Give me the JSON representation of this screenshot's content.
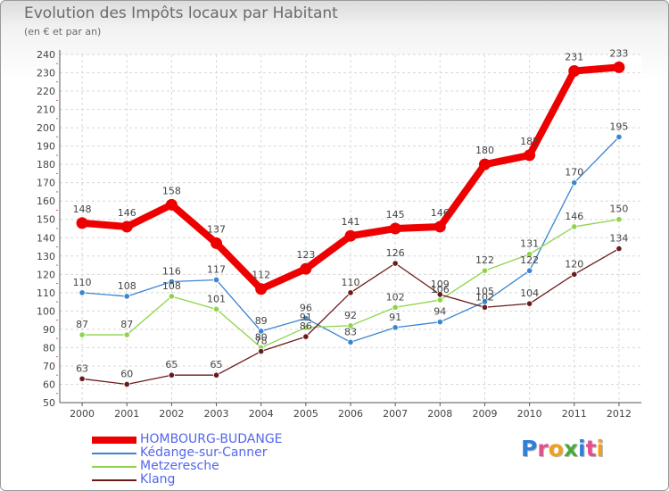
{
  "title": "Evolution des Impôts locaux par Habitant",
  "subtitle": "(en € et par an)",
  "logo": {
    "text": "Proxiti",
    "letter_colors": [
      "#2f7fd8",
      "#e0508a",
      "#f0a020",
      "#4aa83c",
      "#2f7fd8",
      "#e0508a",
      "#f0a020"
    ]
  },
  "chart_data": {
    "type": "line",
    "x": [
      "2000",
      "2001",
      "2002",
      "2003",
      "2004",
      "2005",
      "2006",
      "2007",
      "2008",
      "2009",
      "2010",
      "2011",
      "2012"
    ],
    "ylim": [
      50,
      240
    ],
    "yticks": [
      50,
      60,
      70,
      80,
      90,
      100,
      110,
      120,
      130,
      140,
      150,
      160,
      170,
      180,
      190,
      200,
      210,
      220,
      230,
      240
    ],
    "grid": true,
    "legend": "bottom-left",
    "series": [
      {
        "name": "HOMBOURG-BUDANGE",
        "color": "#ee0000",
        "bold": true,
        "values": [
          148,
          146,
          158,
          137,
          112,
          123,
          141,
          145,
          146,
          180,
          185,
          231,
          233
        ]
      },
      {
        "name": "Kédange-sur-Canner",
        "color": "#3a85d0",
        "bold": false,
        "values": [
          110,
          108,
          116,
          117,
          89,
          96,
          83,
          91,
          94,
          105,
          122,
          170,
          195
        ]
      },
      {
        "name": "Metzeresche",
        "color": "#8ed44a",
        "bold": false,
        "values": [
          87,
          87,
          108,
          101,
          80,
          91,
          92,
          102,
          106,
          122,
          131,
          146,
          150
        ]
      },
      {
        "name": "Klang",
        "color": "#6a1a1a",
        "bold": false,
        "values": [
          63,
          60,
          65,
          65,
          78,
          86,
          110,
          126,
          109,
          102,
          104,
          120,
          134
        ]
      }
    ]
  }
}
